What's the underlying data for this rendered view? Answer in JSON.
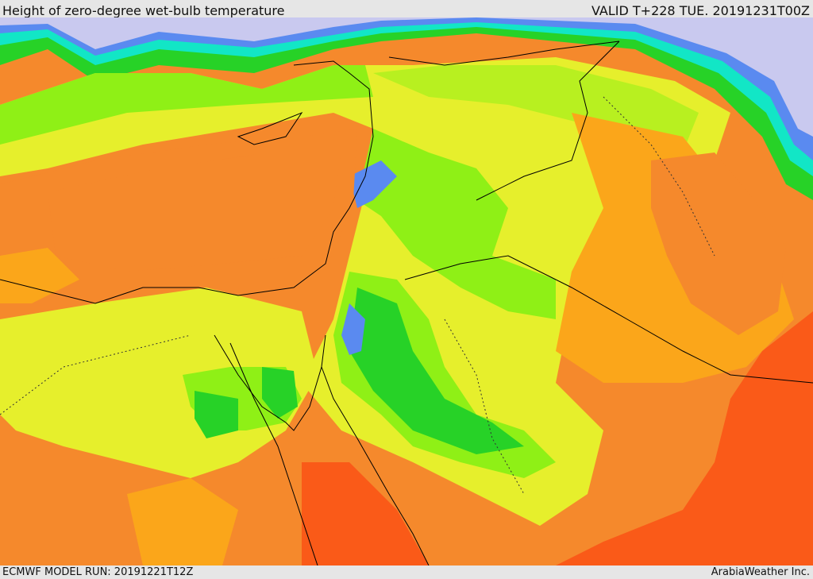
{
  "header": {
    "title": "Height of zero-degree wet-bulb temperature",
    "valid": "VALID T+228 TUE. 20191231T00Z"
  },
  "footer": {
    "model_run": "ECMWF MODEL RUN: 20191221T12Z",
    "credit": "ArabiaWeather Inc."
  }
}
